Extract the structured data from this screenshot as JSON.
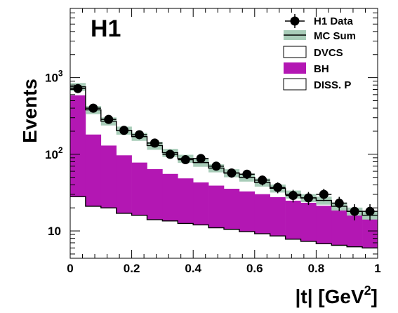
{
  "chart_data": {
    "type": "histogram",
    "tag": "H1",
    "xlabel": "|t| [GeV",
    "xlabel_sup": "2",
    "xlabel_close": "]",
    "ylabel": "Events",
    "xlim": [
      0,
      1
    ],
    "ylim": [
      4.4,
      8000
    ],
    "y_scale": "log",
    "x_ticks": [
      0,
      0.2,
      0.4,
      0.6,
      0.8,
      1
    ],
    "x_tick_labels": [
      "0",
      "0.2",
      "0.4",
      "0.6",
      "0.8",
      "1"
    ],
    "y_ticks": [
      10,
      100,
      1000
    ],
    "y_tick_labels": [
      "10",
      "10",
      "10"
    ],
    "y_tick_exponents": [
      "",
      "2",
      "3"
    ],
    "legend": {
      "position": "top-right",
      "entries": [
        {
          "key": "data",
          "label": "H1 Data"
        },
        {
          "key": "mc",
          "label": "MC Sum"
        },
        {
          "key": "dvcs",
          "label": "DVCS"
        },
        {
          "key": "bh",
          "label": "BH"
        },
        {
          "key": "diss",
          "label": "DISS. P"
        }
      ]
    },
    "bin_edges": [
      0,
      0.05,
      0.1,
      0.15,
      0.2,
      0.25,
      0.3,
      0.35,
      0.4,
      0.45,
      0.5,
      0.55,
      0.6,
      0.65,
      0.7,
      0.75,
      0.8,
      0.85,
      0.9,
      0.95,
      1.0
    ],
    "series": [
      {
        "key": "dvcs",
        "values": [
          28,
          21,
          20,
          17,
          16,
          14,
          13.5,
          12.5,
          12,
          11,
          10.5,
          9.8,
          9.2,
          8.6,
          7.8,
          7.3,
          6.8,
          6.5,
          6.2,
          6
        ]
      },
      {
        "key": "bh",
        "values": [
          560,
          160,
          110,
          80,
          62,
          50,
          42,
          36,
          31,
          28,
          25,
          23,
          21,
          19,
          17,
          16,
          14.5,
          13.5,
          12.5,
          11.5
        ]
      },
      {
        "key": "diss",
        "values": [
          28,
          21,
          20,
          17,
          16,
          14,
          13.5,
          12.5,
          12,
          11,
          10.5,
          9.8,
          9.2,
          8.6,
          7.8,
          7.3,
          6.8,
          6.5,
          6.2,
          6
        ]
      },
      {
        "key": "mc",
        "values": [
          760,
          380,
          270,
          205,
          170,
          130,
          105,
          88,
          78,
          66,
          57,
          50,
          43,
          36,
          30,
          27,
          25,
          21,
          18,
          16
        ],
        "band_rel": 0.12
      },
      {
        "key": "data",
        "x": [
          0.025,
          0.075,
          0.125,
          0.175,
          0.225,
          0.275,
          0.325,
          0.375,
          0.425,
          0.475,
          0.525,
          0.575,
          0.625,
          0.675,
          0.725,
          0.775,
          0.825,
          0.875,
          0.925,
          0.975
        ],
        "values": [
          720,
          400,
          285,
          205,
          180,
          140,
          100,
          85,
          88,
          70,
          57,
          55,
          46,
          37,
          29,
          27,
          30,
          23,
          18,
          18
        ],
        "err": [
          28,
          20,
          17,
          14,
          13,
          12,
          10,
          9,
          9,
          8.5,
          7.5,
          7.5,
          6.8,
          6,
          5.4,
          5.2,
          5.5,
          4.8,
          4.3,
          4.3
        ]
      }
    ]
  }
}
